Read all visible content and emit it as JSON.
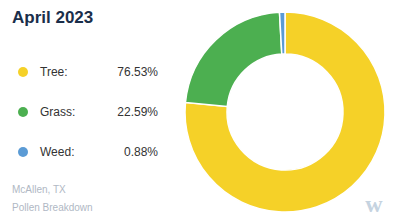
{
  "chart_data": {
    "type": "pie",
    "donut": true,
    "title": "April 2023",
    "subtitle": [
      "McAllen, TX",
      "Pollen Breakdown"
    ],
    "categories": [
      "Tree:",
      "Grass:",
      "Weed:"
    ],
    "values": [
      76.53,
      22.59,
      0.88
    ],
    "value_labels": [
      "76.53%",
      "22.59%",
      "0.88%"
    ],
    "colors": [
      "#f5d128",
      "#4caf50",
      "#5b9bd5"
    ],
    "legend": "left",
    "annotations": [
      "w"
    ]
  }
}
